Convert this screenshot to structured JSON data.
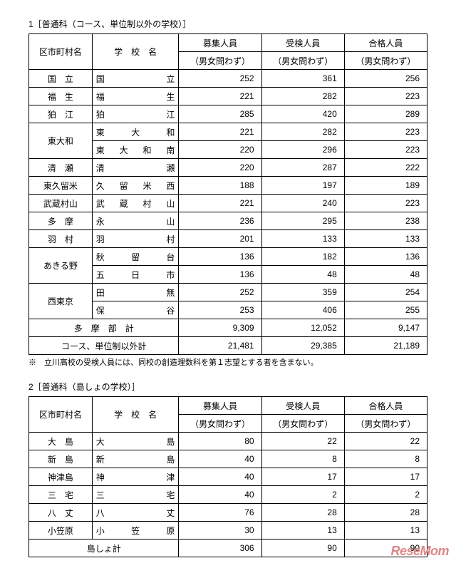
{
  "t1": {
    "title": "1［普通科（コース、単位制以外の学校）］",
    "h": {
      "c1": "区市町村名",
      "c2": "学　校　名",
      "c3a": "募集人員",
      "c3b": "（男女問わず）",
      "c4a": "受検人員",
      "c4b": "（男女問わず）",
      "c5a": "合格人員",
      "c5b": "（男女問わず）"
    },
    "rows": [
      {
        "city": "国　立",
        "school": "国　　立",
        "r": "252",
        "e": "361",
        "p": "256",
        "rs": 1
      },
      {
        "city": "福　生",
        "school": "福　　生",
        "r": "221",
        "e": "282",
        "p": "223",
        "rs": 1
      },
      {
        "city": "狛　江",
        "school": "狛　　江",
        "r": "285",
        "e": "420",
        "p": "289",
        "rs": 1
      },
      {
        "city": "東大和",
        "school": "東　大　和",
        "r": "221",
        "e": "282",
        "p": "223",
        "rs": 2
      },
      {
        "school": "東　大　和　南",
        "r": "220",
        "e": "296",
        "p": "223"
      },
      {
        "city": "清　瀬",
        "school": "清　　瀬",
        "r": "220",
        "e": "287",
        "p": "222",
        "rs": 1
      },
      {
        "city": "東久留米",
        "school": "久　留　米　西",
        "r": "188",
        "e": "197",
        "p": "189",
        "rs": 1
      },
      {
        "city": "武蔵村山",
        "school": "武　蔵　村　山",
        "r": "221",
        "e": "240",
        "p": "223",
        "rs": 1
      },
      {
        "city": "多　摩",
        "school": "永　　山",
        "r": "236",
        "e": "295",
        "p": "238",
        "rs": 1
      },
      {
        "city": "羽　村",
        "school": "羽　　村",
        "r": "201",
        "e": "133",
        "p": "133",
        "rs": 1
      },
      {
        "city": "あきる野",
        "school": "秋　留　台",
        "r": "136",
        "e": "182",
        "p": "136",
        "rs": 2
      },
      {
        "school": "五　日　市",
        "r": "136",
        "e": "48",
        "p": "48"
      },
      {
        "city": "西東京",
        "school": "田　　無",
        "r": "252",
        "e": "359",
        "p": "254",
        "rs": 2
      },
      {
        "school": "保　　谷",
        "r": "253",
        "e": "406",
        "p": "255"
      }
    ],
    "sub1": {
      "lbl": "多　摩　部　計",
      "r": "9,309",
      "e": "12,052",
      "p": "9,147"
    },
    "sub2": {
      "lbl": "コース、単位制以外計",
      "r": "21,481",
      "e": "29,385",
      "p": "21,189"
    },
    "note": "※　立川高校の受検人員には、同校の創造理数科を第１志望とする者を含まない。"
  },
  "t2": {
    "title": "2［普通科（島しょの学校）］",
    "h": {
      "c1": "区市町村名",
      "c2": "学　校　名",
      "c3a": "募集人員",
      "c3b": "（男女問わず）",
      "c4a": "受検人員",
      "c4b": "（男女問わず）",
      "c5a": "合格人員",
      "c5b": "（男女問わず）"
    },
    "rows": [
      {
        "city": "大　島",
        "school": "大　　島",
        "r": "80",
        "e": "22",
        "p": "22"
      },
      {
        "city": "新　島",
        "school": "新　　島",
        "r": "40",
        "e": "8",
        "p": "8"
      },
      {
        "city": "神津島",
        "school": "神　　津",
        "r": "40",
        "e": "17",
        "p": "17"
      },
      {
        "city": "三　宅",
        "school": "三　　宅",
        "r": "40",
        "e": "2",
        "p": "2"
      },
      {
        "city": "八　丈",
        "school": "八　　丈",
        "r": "76",
        "e": "28",
        "p": "28"
      },
      {
        "city": "小笠原",
        "school": "小　笠　原",
        "r": "30",
        "e": "13",
        "p": "13"
      }
    ],
    "sub": {
      "lbl": "島しょ計",
      "r": "306",
      "e": "90",
      "p": "90"
    }
  },
  "wm": {
    "a": "Rese",
    "b": "Mom"
  }
}
